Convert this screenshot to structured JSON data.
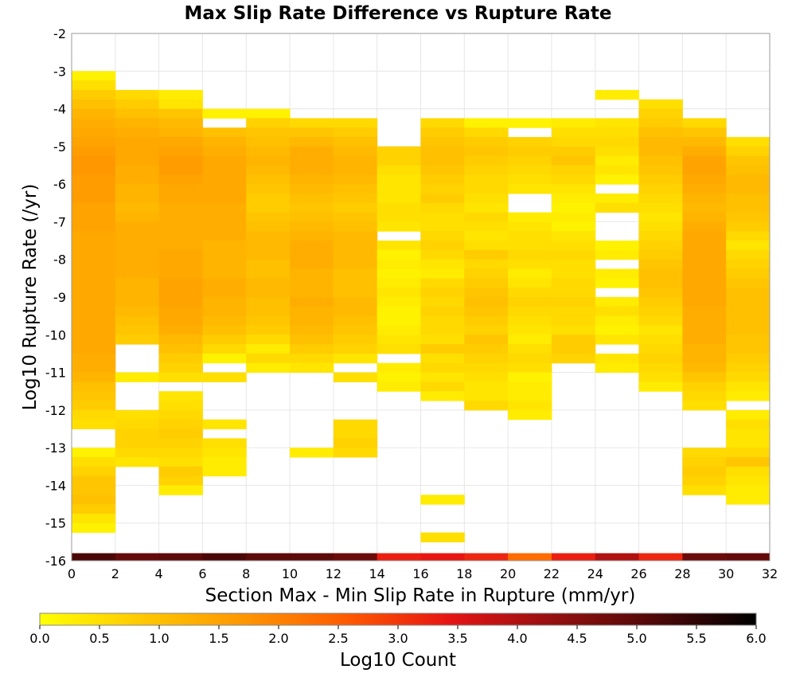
{
  "chart_data": {
    "type": "heatmap",
    "title": "Max Slip Rate Difference vs Rupture Rate",
    "xlabel": "Section Max - Min Slip Rate in Rupture (mm/yr)",
    "ylabel": "Log10 Rupture Rate (/yr)",
    "xlim": [
      0,
      32
    ],
    "ylim": [
      -16,
      -2
    ],
    "x_ticks": [
      "0",
      "2",
      "4",
      "6",
      "8",
      "10",
      "12",
      "14",
      "16",
      "18",
      "20",
      "22",
      "24",
      "26",
      "28",
      "30",
      "32"
    ],
    "y_ticks": [
      "-16",
      "-15",
      "-14",
      "-13",
      "-12",
      "-11",
      "-10",
      "-9",
      "-8",
      "-7",
      "-6",
      "-5",
      "-4",
      "-3",
      "-2"
    ],
    "grid": true,
    "cell_size": {
      "x": 2,
      "y": 0.25
    },
    "colorbar": {
      "label": "Log10 Count",
      "range": [
        0,
        6
      ],
      "ticks": [
        "0.0",
        "0.5",
        "1.0",
        "1.5",
        "2.0",
        "2.5",
        "3.0",
        "3.5",
        "4.0",
        "4.5",
        "5.0",
        "5.5",
        "6.0"
      ],
      "colors": [
        "#ffff00",
        "#ffc800",
        "#ff9600",
        "#ff5a00",
        "#e61414",
        "#961010",
        "#500808",
        "#000000"
      ]
    },
    "columns": [
      {
        "x": 0,
        "y_top": -3.0,
        "values": [
          0.2,
          0.5,
          0.8,
          1.0,
          1.2,
          1.3,
          1.4,
          1.5,
          1.6,
          1.7,
          1.7,
          1.6,
          1.6,
          1.6,
          1.5,
          1.5,
          1.5,
          1.4,
          1.4,
          1.4,
          1.4,
          1.4,
          1.4,
          1.4,
          1.4,
          1.4,
          1.4,
          1.4,
          1.4,
          1.4,
          1.3,
          1.3,
          1.2,
          1.0,
          0.9,
          0.8,
          0.6,
          0.5,
          null,
          null,
          0.2,
          0.5,
          0.7,
          0.9,
          0.9,
          1.0,
          0.8,
          0.4,
          0.2
        ],
        "total": 5.2
      },
      {
        "x": 2,
        "y_top": -3.5,
        "values": [
          0.6,
          0.8,
          1.0,
          1.2,
          1.3,
          1.4,
          1.4,
          1.4,
          1.3,
          1.3,
          1.2,
          1.2,
          1.1,
          1.2,
          1.3,
          1.3,
          1.3,
          1.3,
          1.3,
          1.3,
          1.2,
          1.2,
          1.2,
          1.1,
          1.0,
          0.9,
          0.8,
          null,
          null,
          null,
          0.3,
          null,
          null,
          null,
          0.5,
          0.6,
          0.7,
          0.7,
          0.6,
          0.4
        ],
        "total": 4.9
      },
      {
        "x": 4,
        "y_top": -3.5,
        "values": [
          0.3,
          0.4,
          0.9,
          1.1,
          1.2,
          1.4,
          1.5,
          1.6,
          1.6,
          1.5,
          1.4,
          1.4,
          1.3,
          1.3,
          1.3,
          1.3,
          1.3,
          1.4,
          1.4,
          1.4,
          1.5,
          1.5,
          1.5,
          1.4,
          1.4,
          1.3,
          1.1,
          1.0,
          0.8,
          0.7,
          0.5,
          null,
          0.4,
          0.5,
          0.6,
          0.7,
          0.8,
          0.7,
          0.6,
          0.5,
          0.8,
          0.7,
          0.3
        ],
        "total": 5.0
      },
      {
        "x": 6,
        "y_top": -4.0,
        "values": [
          0.2,
          null,
          1.0,
          1.2,
          1.3,
          1.4,
          1.4,
          1.4,
          1.4,
          1.4,
          1.3,
          1.3,
          1.3,
          1.3,
          1.2,
          1.2,
          1.2,
          1.2,
          1.3,
          1.3,
          1.2,
          1.2,
          1.1,
          1.0,
          0.8,
          0.6,
          0.2,
          null,
          0.5,
          null,
          null,
          null,
          null,
          0.4,
          null,
          0.5,
          0.4,
          0.3,
          0.3
        ],
        "total": 5.2
      },
      {
        "x": 8,
        "y_top": -4.0,
        "values": [
          0.2,
          0.7,
          0.9,
          1.0,
          1.1,
          1.2,
          1.1,
          1.0,
          0.9,
          0.8,
          0.8,
          0.9,
          1.0,
          1.1,
          1.1,
          1.1,
          1.0,
          1.0,
          1.1,
          1.1,
          1.0,
          1.0,
          0.9,
          0.8,
          0.6,
          0.3,
          0.6,
          0.3
        ],
        "total": 5.0
      },
      {
        "x": 10,
        "y_top": -4.25,
        "values": [
          0.6,
          0.9,
          1.1,
          1.3,
          1.3,
          1.3,
          1.2,
          1.1,
          1.0,
          0.9,
          1.0,
          1.1,
          1.2,
          1.3,
          1.3,
          1.3,
          1.2,
          1.2,
          1.2,
          1.3,
          1.2,
          1.2,
          1.1,
          1.0,
          0.8,
          0.6,
          0.4,
          null,
          null,
          null,
          null,
          null,
          null,
          null,
          null,
          0.3
        ],
        "total": 5.0
      },
      {
        "x": 12,
        "y_top": -4.25,
        "values": [
          0.6,
          0.8,
          1.0,
          1.1,
          1.2,
          1.2,
          1.1,
          1.0,
          0.9,
          0.8,
          0.9,
          1.0,
          1.1,
          1.1,
          1.1,
          1.1,
          1.0,
          1.0,
          1.0,
          1.1,
          1.1,
          1.0,
          0.9,
          0.8,
          0.7,
          0.4,
          null,
          0.5,
          null,
          null,
          null,
          null,
          0.6,
          0.6,
          0.7,
          0.6
        ],
        "total": 4.8
      },
      {
        "x": 14,
        "y_top": -5.0,
        "values": [
          0.7,
          0.7,
          0.5,
          0.4,
          0.4,
          0.4,
          0.5,
          0.5,
          0.4,
          null,
          0.4,
          0.2,
          0.3,
          0.2,
          0.3,
          0.4,
          0.3,
          0.2,
          0.2,
          0.3,
          0.4,
          0.5,
          null,
          0.3,
          0.2,
          0.3
        ],
        "total": 3.3
      },
      {
        "x": 16,
        "y_top": -4.25,
        "values": [
          0.6,
          0.8,
          0.9,
          1.0,
          1.0,
          0.9,
          0.8,
          0.7,
          0.8,
          0.6,
          0.5,
          0.5,
          0.6,
          0.7,
          0.6,
          0.4,
          0.3,
          0.6,
          0.7,
          0.6,
          0.7,
          0.6,
          0.6,
          0.5,
          0.8,
          0.5,
          0.6,
          0.4,
          0.6,
          0.3,
          null,
          null,
          null,
          null,
          null,
          null,
          null,
          null,
          null,
          null,
          0.3,
          null,
          null,
          null,
          0.5
        ],
        "total": 3.4
      },
      {
        "x": 18,
        "y_top": -4.25,
        "values": [
          0.2,
          0.6,
          0.8,
          0.9,
          0.8,
          0.7,
          0.6,
          0.6,
          0.5,
          0.4,
          0.6,
          0.5,
          0.4,
          0.5,
          0.8,
          0.6,
          0.7,
          0.8,
          0.9,
          1.0,
          0.9,
          0.8,
          0.7,
          0.9,
          0.8,
          0.7,
          0.6,
          0.5,
          0.4,
          0.4,
          0.6
        ],
        "total": 3.2
      },
      {
        "x": 20,
        "y_top": -4.25,
        "values": [
          0.2,
          null,
          0.7,
          0.8,
          0.7,
          0.6,
          0.5,
          0.4,
          null,
          null,
          0.3,
          0.4,
          0.5,
          0.5,
          0.6,
          0.5,
          0.3,
          0.4,
          0.6,
          0.7,
          0.6,
          0.5,
          0.4,
          0.3,
          0.5,
          0.6,
          0.5,
          0.2,
          0.3,
          0.3,
          0.4,
          0.3
        ],
        "total": 2.3
      },
      {
        "x": 22,
        "y_top": -4.25,
        "values": [
          0.3,
          0.5,
          0.6,
          0.8,
          0.9,
          0.7,
          0.6,
          0.4,
          0.3,
          0.2,
          0.3,
          0.2,
          0.4,
          0.5,
          0.6,
          0.5,
          0.5,
          0.6,
          0.6,
          0.7,
          0.6,
          0.6,
          0.5,
          0.8,
          0.8,
          0.7
        ],
        "total": 3.3
      },
      {
        "x": 24,
        "y_top": -3.5,
        "values": [
          0.3,
          null,
          null,
          0.4,
          0.5,
          0.6,
          0.5,
          0.3,
          0.4,
          0.2,
          null,
          0.3,
          0.5,
          null,
          null,
          null,
          0.2,
          0.3,
          null,
          0.3,
          0.2,
          null,
          0.3,
          0.5,
          0.3,
          0.2,
          0.4,
          null,
          0.4,
          0.3
        ],
        "total": 4.0
      },
      {
        "x": 26,
        "y_top": -3.75,
        "values": [
          0.5,
          0.7,
          0.8,
          1.0,
          1.1,
          1.1,
          1.0,
          0.9,
          0.8,
          0.7,
          0.6,
          0.5,
          0.4,
          0.5,
          0.6,
          0.7,
          0.8,
          0.9,
          1.0,
          1.0,
          0.9,
          0.8,
          0.7,
          0.6,
          0.4,
          0.5,
          0.6,
          0.7,
          0.6,
          0.5,
          0.3
        ],
        "total": 3.2
      },
      {
        "x": 28,
        "y_top": -4.25,
        "values": [
          0.6,
          0.9,
          1.1,
          1.3,
          1.5,
          1.5,
          1.4,
          1.3,
          1.2,
          1.1,
          1.2,
          1.3,
          1.4,
          1.4,
          1.4,
          1.4,
          1.4,
          1.4,
          1.4,
          1.4,
          1.3,
          1.3,
          1.3,
          1.3,
          1.2,
          1.2,
          1.1,
          0.9,
          0.7,
          0.6,
          0.5,
          null,
          null,
          null,
          null,
          0.6,
          0.7,
          0.8,
          0.7,
          0.5
        ],
        "total": 4.8
      },
      {
        "x": 30,
        "y_top": -4.75,
        "values": [
          0.5,
          0.7,
          0.9,
          1.0,
          1.1,
          1.1,
          1.0,
          1.0,
          0.9,
          0.8,
          0.6,
          0.4,
          0.6,
          0.7,
          0.8,
          0.9,
          1.0,
          1.0,
          1.0,
          1.0,
          1.0,
          0.9,
          0.9,
          0.8,
          0.7,
          0.6,
          0.4,
          0.3,
          null,
          0.3,
          0.5,
          0.4,
          0.4,
          0.6,
          0.9,
          0.5,
          0.4,
          0.3,
          0.3
        ],
        "total": 4.9
      }
    ]
  }
}
